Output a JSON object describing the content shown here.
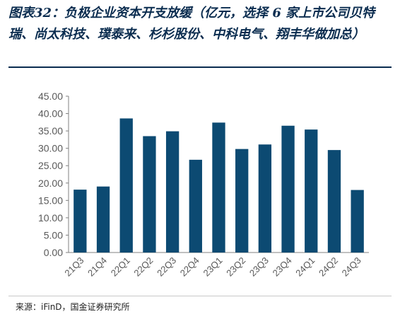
{
  "header": {
    "title": "图表32：负极企业资本开支放缓（亿元，选择 6 家上市公司贝特瑞、尚太科技、璞泰来、杉杉股份、中科电气、翔丰华做加总）"
  },
  "source": "来源：iFinD，国金证券研究所",
  "colors": {
    "bar": "#0c4a72",
    "axis": "#808080",
    "title": "#0a2c4f"
  },
  "chart_data": {
    "type": "bar",
    "categories": [
      "21Q3",
      "21Q4",
      "22Q1",
      "22Q2",
      "22Q3",
      "22Q4",
      "23Q1",
      "23Q2",
      "23Q3",
      "23Q4",
      "24Q1",
      "24Q2",
      "24Q3"
    ],
    "values": [
      18.1,
      19.0,
      38.6,
      33.5,
      34.9,
      26.7,
      37.4,
      29.8,
      31.1,
      36.5,
      35.4,
      29.5,
      18.0
    ],
    "ylim": [
      0,
      45
    ],
    "yticks": [
      "0.00",
      "5.00",
      "10.00",
      "15.00",
      "20.00",
      "25.00",
      "30.00",
      "35.00",
      "40.00",
      "45.00"
    ],
    "grid": false,
    "legend": "none"
  }
}
